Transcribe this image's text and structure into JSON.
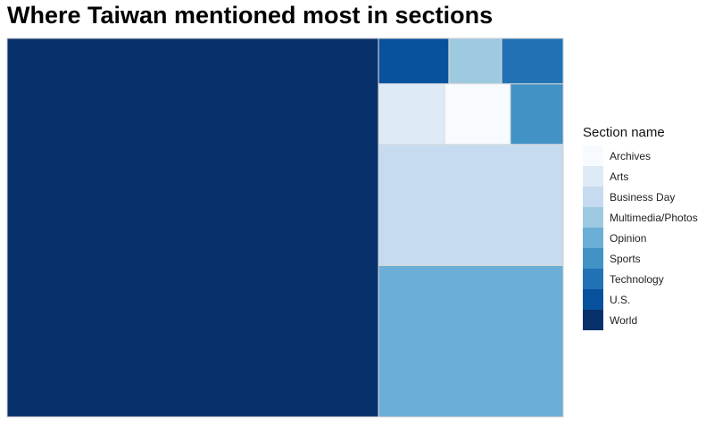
{
  "chart_data": {
    "type": "treemap",
    "title": "Where Taiwan mentioned most in sections",
    "legend_title": "Section name",
    "legend_placement": "right",
    "categories": [
      "Archives",
      "Arts",
      "Business Day",
      "Multimedia/Photos",
      "Opinion",
      "Sports",
      "Technology",
      "U.S.",
      "World"
    ],
    "colors": {
      "Archives": "#f7fbff",
      "Arts": "#deebf7",
      "Business Day": "#c6dbef",
      "Multimedia/Photos": "#9ecae1",
      "Opinion": "#6baed6",
      "Sports": "#4292c6",
      "Technology": "#2171b5",
      "U.S.": "#08519c",
      "World": "#08306b"
    },
    "values": [
      {
        "name": "World",
        "value": 176
      },
      {
        "name": "Opinion",
        "value": 35
      },
      {
        "name": "Business Day",
        "value": 28
      },
      {
        "name": "Arts",
        "value": 5
      },
      {
        "name": "Archives",
        "value": 5
      },
      {
        "name": "Sports",
        "value": 4
      },
      {
        "name": "U.S.",
        "value": 4
      },
      {
        "name": "Multimedia/Photos",
        "value": 3
      },
      {
        "name": "Technology",
        "value": 3.5
      }
    ]
  }
}
